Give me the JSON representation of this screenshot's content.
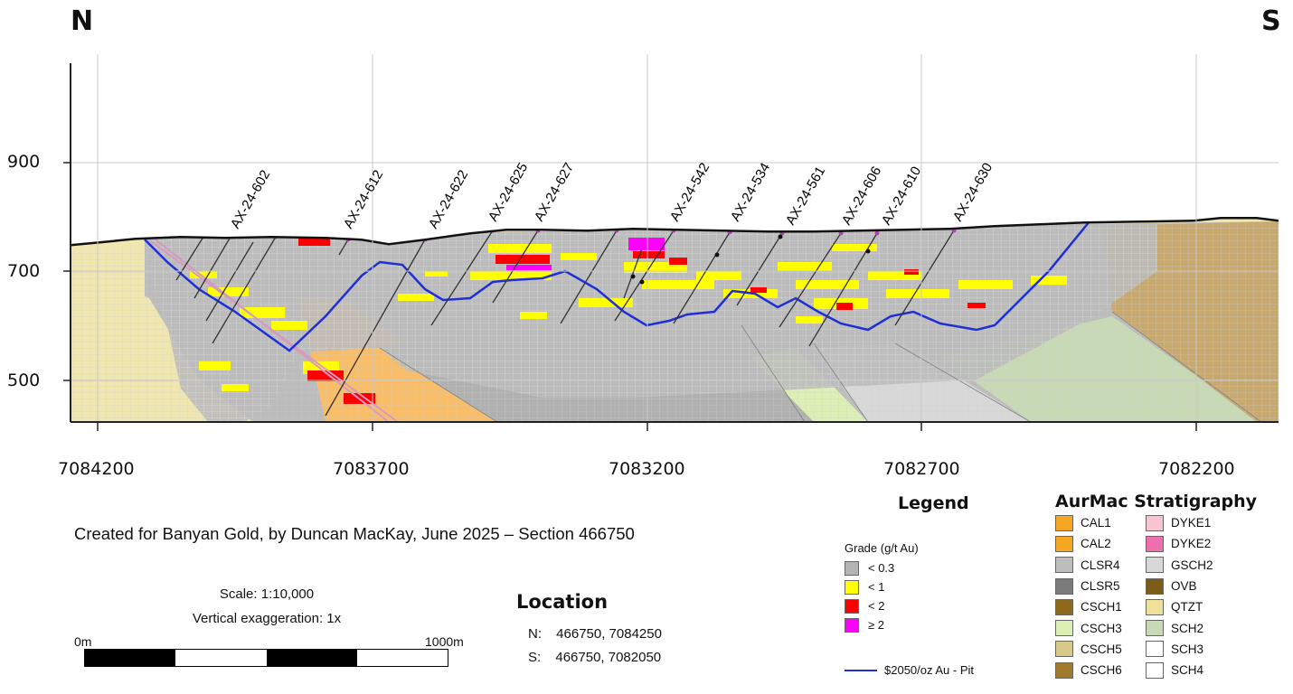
{
  "section": {
    "north_label": "N",
    "south_label": "S",
    "elevation_ticks": [
      "900",
      "700",
      "500"
    ],
    "northing_ticks": [
      "7084200",
      "7083700",
      "7083200",
      "7082700",
      "7082200"
    ],
    "drillholes": [
      "AX-24-602",
      "AX-24-612",
      "AX-24-622",
      "AX-24-625",
      "AX-24-627",
      "AX-24-542",
      "AX-24-534",
      "AX-24-561",
      "AX-24-606",
      "AX-24-610",
      "AX-24-630"
    ]
  },
  "credit": "Created for Banyan Gold, by Duncan MacKay, June 2025 – Section 466750",
  "scale": {
    "text": "Scale: 1:10,000",
    "exaggeration": "Vertical exaggeration: 1x",
    "left_label": "0m",
    "right_label": "1000m"
  },
  "location": {
    "title": "Location",
    "rows": [
      {
        "key": "N:",
        "value": "466750, 7084250"
      },
      {
        "key": "S:",
        "value": "466750, 7082050"
      }
    ]
  },
  "legend": {
    "title": "Legend",
    "grade_title": "Grade (g/t Au)",
    "grades": [
      {
        "label": "< 0.3",
        "color": "#b4b4b4"
      },
      {
        "label": "< 1",
        "color": "#ffff00"
      },
      {
        "label": "< 2",
        "color": "#ff0000"
      },
      {
        "label": "≥ 2",
        "color": "#ff00ff"
      }
    ],
    "pit_label": "$2050/oz Au - Pit",
    "pit_color": "#1f2fd6"
  },
  "stratigraphy": {
    "title": "AurMac Stratigraphy",
    "units": [
      {
        "label": "CAL1",
        "color": "#f5a623"
      },
      {
        "label": "DYKE1",
        "color": "#f7c6cf"
      },
      {
        "label": "CAL2",
        "color": "#f5a623"
      },
      {
        "label": "DYKE2",
        "color": "#ee6fb0"
      },
      {
        "label": "CLSR4",
        "color": "#bdbdbd"
      },
      {
        "label": "GSCH2",
        "color": "#d8d8d8"
      },
      {
        "label": "CLSR5",
        "color": "#7a7a7a"
      },
      {
        "label": "OVB",
        "color": "#7d5c17"
      },
      {
        "label": "CSCH1",
        "color": "#8f6a1c"
      },
      {
        "label": "QTZT",
        "color": "#efe19b"
      },
      {
        "label": "CSCH3",
        "color": "#dcefb4"
      },
      {
        "label": "SCH2",
        "color": "#c7d9b5"
      },
      {
        "label": "CSCH5",
        "color": "#d8c98b"
      },
      {
        "label": "SCH3",
        "color": "#ffffff"
      },
      {
        "label": "CSCH6",
        "color": "#a27a2c"
      },
      {
        "label": "SCH4",
        "color": "#ffffff"
      }
    ]
  }
}
